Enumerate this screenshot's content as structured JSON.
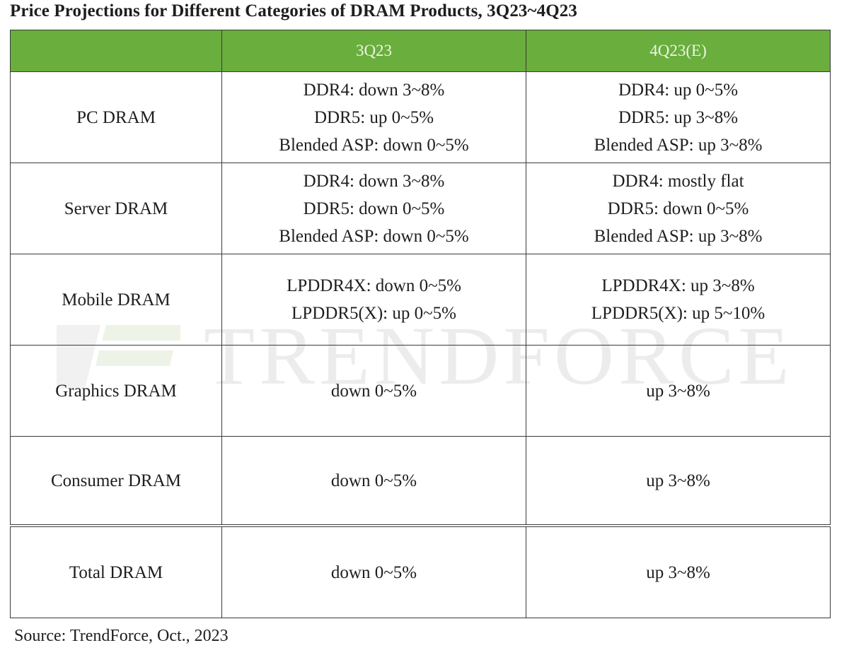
{
  "title": "Price Projections for Different Categories of DRAM Products, 3Q23~4Q23",
  "watermark": "TRENDFORCE",
  "columns": [
    "",
    "3Q23",
    "4Q23(E)"
  ],
  "rows": [
    {
      "category": "PC DRAM",
      "q3": [
        "DDR4: down 3~8%",
        "DDR5: up 0~5%",
        "Blended ASP: down 0~5%"
      ],
      "q4": [
        "DDR4: up 0~5%",
        "DDR5:  up 3~8%",
        "Blended ASP: up 3~8%"
      ]
    },
    {
      "category": "Server DRAM",
      "q3": [
        "DDR4: down 3~8%",
        "DDR5: down 0~5%",
        "Blended ASP: down 0~5%"
      ],
      "q4": [
        "DDR4: mostly flat",
        "DDR5: down 0~5%",
        "Blended ASP: up 3~8%"
      ]
    },
    {
      "category": "Mobile DRAM",
      "q3": [
        "LPDDR4X: down 0~5%",
        "LPDDR5(X): up 0~5%"
      ],
      "q4": [
        "LPDDR4X: up 3~8%",
        "LPDDR5(X): up 5~10%"
      ]
    },
    {
      "category": "Graphics DRAM",
      "q3": [
        "down 0~5%"
      ],
      "q4": [
        "up  3~8%"
      ]
    },
    {
      "category": "Consumer DRAM",
      "q3": [
        "down 0~5%"
      ],
      "q4": [
        "up  3~8%"
      ]
    },
    {
      "category": "Total DRAM",
      "q3": [
        "down 0~5%"
      ],
      "q4": [
        "up  3~8%"
      ]
    }
  ],
  "source": "Source: TrendForce, Oct.,  2023",
  "colors": {
    "header_bg": "#6aae3e",
    "header_text": "#eaf6e2",
    "border": "#3a3a3a",
    "watermark": "#ececec"
  }
}
